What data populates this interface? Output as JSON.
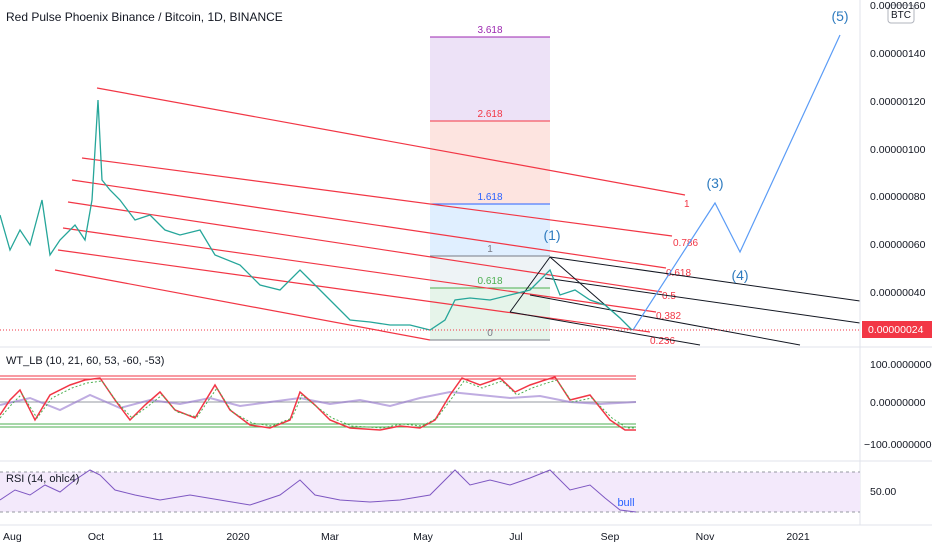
{
  "header": {
    "title": "Red Pulse Phoenix Binance / Bitcoin, 1D, BINANCE",
    "badge": "BTC"
  },
  "price_axis": {
    "labels": [
      "0.00000160",
      "0.00000140",
      "0.00000120",
      "0.00000100",
      "0.00000080",
      "0.00000060",
      "0.00000040"
    ],
    "current_price": "0.00000024"
  },
  "fib_extension": {
    "levels": [
      "3.618",
      "2.618",
      "1.618",
      "1",
      "0.618",
      "0"
    ]
  },
  "fib_channel": {
    "levels": [
      "1",
      "0.786",
      "0.618",
      "0.5",
      "0.382",
      "0.236"
    ]
  },
  "waves": [
    "(1)",
    "(3)",
    "(4)",
    "(5)"
  ],
  "wavetrend": {
    "label": "WT_LB (10, 21, 60, 53, -60, -53)",
    "axis": [
      "100.00000000",
      "0.00000000",
      "−100.00000000"
    ]
  },
  "rsi": {
    "label": "RSI (14, ohlc4)",
    "axis": [
      "50.00"
    ],
    "annotation": "bull"
  },
  "time_axis": {
    "labels": [
      "Aug",
      "Oct",
      "11",
      "2020",
      "Mar",
      "May",
      "Jul",
      "Sep",
      "Nov",
      "2021"
    ]
  }
}
